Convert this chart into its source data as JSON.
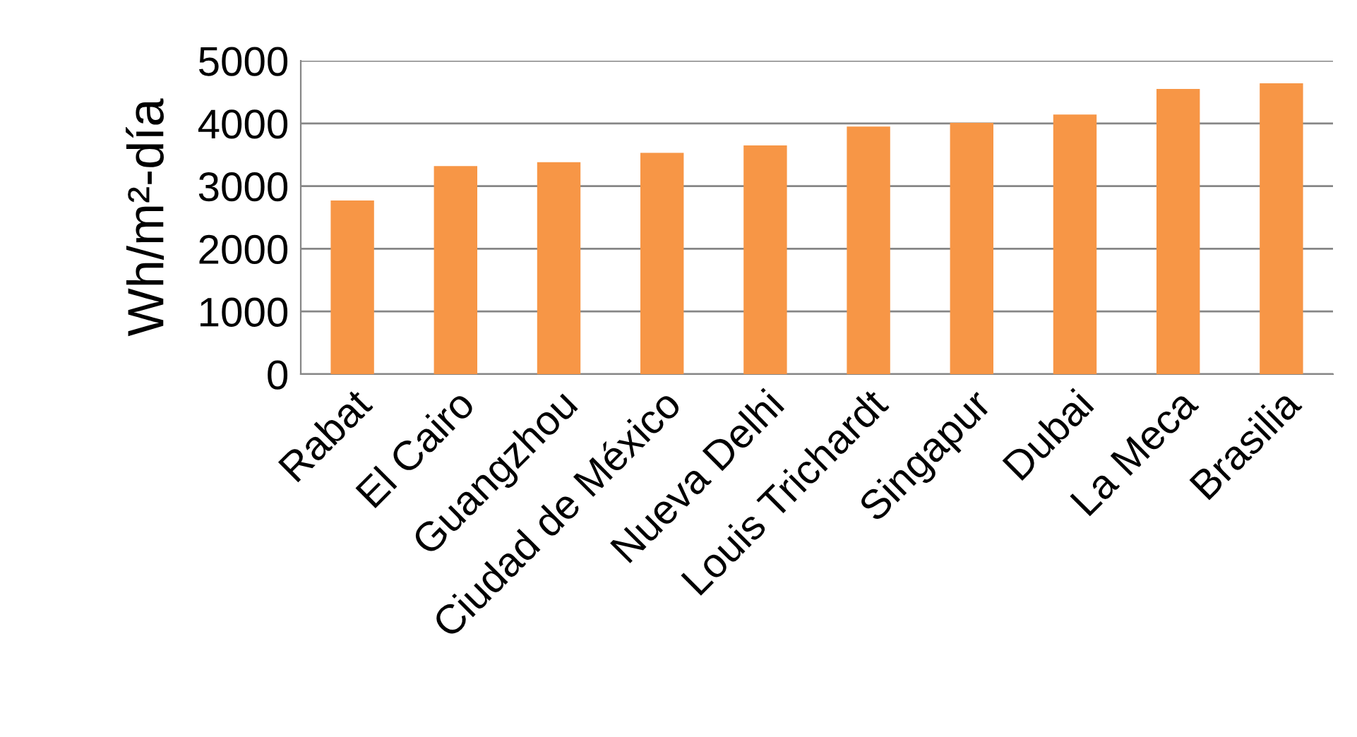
{
  "chart_data": {
    "type": "bar",
    "ylabel": "Wh/m²-día",
    "categories": [
      "Rabat",
      "El Cairo",
      "Guangzhou",
      "Ciudad de México",
      "Nueva Delhi",
      "Louis Trichardt",
      "Singapur",
      "Dubai",
      "La Meca",
      "Brasilia"
    ],
    "values": [
      2770,
      3320,
      3380,
      3530,
      3650,
      3950,
      4010,
      4140,
      4550,
      4640
    ],
    "color": "#f79646",
    "ylim": [
      0,
      5000
    ],
    "yticks": [
      0,
      1000,
      2000,
      3000,
      4000,
      5000
    ],
    "grid": "y"
  }
}
